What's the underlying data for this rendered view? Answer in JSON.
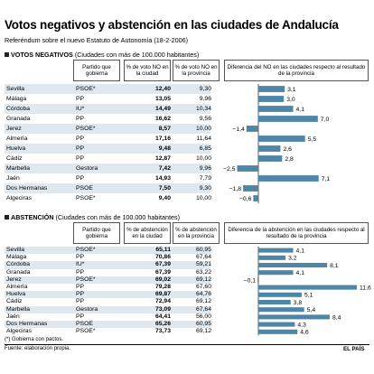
{
  "title": "Votos negativos y abstención en las ciudades de Andalucía",
  "subtitle": "Referéndum sobre el nuevo Estatuto de Autonomía (18-2-2006)",
  "sections": [
    {
      "label_bold": "VOTOS NEGATIVOS",
      "label_rest": " (Ciudades con más de 100.000 habitantes)",
      "headers": [
        "Partido que gobierna",
        "% de voto NO en la ciudad",
        "% de voto NO en la provincia",
        "Diferencia del NO en las ciudades respecto al resultado de la provincia"
      ]
    },
    {
      "label_bold": "ABSTENCIÓN",
      "label_rest": " (Ciudades con más de 100.000 habitantes)",
      "headers": [
        "Partido que gobierna",
        "% de abstención en la ciudad",
        "% de abstención en la provincia",
        "Diferencia de la abstención en las ciudades respecto al resultado de la provincia"
      ]
    }
  ],
  "chart_data": [
    {
      "type": "table",
      "title": "VOTOS NEGATIVOS",
      "columns": [
        "Ciudad",
        "Partido que gobierna",
        "% de voto NO en la ciudad",
        "% de voto NO en la provincia",
        "Diferencia"
      ],
      "rows": [
        {
          "city": "Sevilla",
          "party": "PSOE*",
          "city_pct": "12,40",
          "prov_pct": "9,30",
          "diff": 3.1,
          "diff_label": "3,1"
        },
        {
          "city": "Málaga",
          "party": "PP",
          "city_pct": "13,05",
          "prov_pct": "9,96",
          "diff": 3.0,
          "diff_label": "3,0"
        },
        {
          "city": "Córdoba",
          "party": "IU*",
          "city_pct": "14,49",
          "prov_pct": "10,34",
          "diff": 4.1,
          "diff_label": "4,1"
        },
        {
          "city": "Granada",
          "party": "PP",
          "city_pct": "16,62",
          "prov_pct": "9,56",
          "diff": 7.0,
          "diff_label": "7,0"
        },
        {
          "city": "Jerez",
          "party": "PSOE*",
          "city_pct": "8,57",
          "prov_pct": "10,00",
          "diff": -1.4,
          "diff_label": "−1,4"
        },
        {
          "city": "Almería",
          "party": "PP",
          "city_pct": "17,16",
          "prov_pct": "11,64",
          "diff": 5.5,
          "diff_label": "5,5"
        },
        {
          "city": "Huelva",
          "party": "PP",
          "city_pct": "9,48",
          "prov_pct": "6,85",
          "diff": 2.6,
          "diff_label": "2,6"
        },
        {
          "city": "Cádiz",
          "party": "PP",
          "city_pct": "12,87",
          "prov_pct": "10,00",
          "diff": 2.8,
          "diff_label": "2,8"
        },
        {
          "city": "Marbella",
          "party": "Gestora",
          "city_pct": "7,42",
          "prov_pct": "9,96",
          "diff": -2.5,
          "diff_label": "−2,5"
        },
        {
          "city": "Jaén",
          "party": "PP",
          "city_pct": "14,93",
          "prov_pct": "7,79",
          "diff": 7.1,
          "diff_label": "7,1"
        },
        {
          "city": "Dos Hermanas",
          "party": "PSOE",
          "city_pct": "7,50",
          "prov_pct": "9,30",
          "diff": -1.8,
          "diff_label": "−1,8"
        },
        {
          "city": "Algeciras",
          "party": "PSOE*",
          "city_pct": "9,40",
          "prov_pct": "10,00",
          "diff": -0.6,
          "diff_label": "−0,6"
        }
      ]
    },
    {
      "type": "table",
      "title": "ABSTENCIÓN",
      "columns": [
        "Ciudad",
        "Partido que gobierna",
        "% de abstención en la ciudad",
        "% de abstención en la provincia",
        "Diferencia"
      ],
      "rows": [
        {
          "city": "Sevilla",
          "party": "PSOE*",
          "city_pct": "65,11",
          "prov_pct": "60,95",
          "diff": 4.1,
          "diff_label": "4,1"
        },
        {
          "city": "Málaga",
          "party": "PP",
          "city_pct": "70,86",
          "prov_pct": "67,64",
          "diff": 3.2,
          "diff_label": "3,2"
        },
        {
          "city": "Córdoba",
          "party": "IU*",
          "city_pct": "67,39",
          "prov_pct": "59,21",
          "diff": 8.1,
          "diff_label": "8,1"
        },
        {
          "city": "Granada",
          "party": "PP",
          "city_pct": "67,39",
          "prov_pct": "63,22",
          "diff": 4.1,
          "diff_label": "4,1"
        },
        {
          "city": "Jerez",
          "party": "PSOE*",
          "city_pct": "69,02",
          "prov_pct": "69,12",
          "diff": -0.1,
          "diff_label": "−0,1"
        },
        {
          "city": "Almería",
          "party": "PP",
          "city_pct": "79,28",
          "prov_pct": "67,60",
          "diff": 11.6,
          "diff_label": "11,6"
        },
        {
          "city": "Huelva",
          "party": "PP",
          "city_pct": "69,87",
          "prov_pct": "64,76",
          "diff": 5.1,
          "diff_label": "5,1"
        },
        {
          "city": "Cádiz",
          "party": "PP",
          "city_pct": "72,94",
          "prov_pct": "69,12",
          "diff": 3.8,
          "diff_label": "3,8"
        },
        {
          "city": "Marbella",
          "party": "Gestora",
          "city_pct": "73,09",
          "prov_pct": "67,64",
          "diff": 5.4,
          "diff_label": "5,4"
        },
        {
          "city": "Jaén",
          "party": "PP",
          "city_pct": "64,41",
          "prov_pct": "56,00",
          "diff": 8.4,
          "diff_label": "8,4"
        },
        {
          "city": "Dos Hermanas",
          "party": "PSOE",
          "city_pct": "65,26",
          "prov_pct": "60,95",
          "diff": 4.3,
          "diff_label": "4,3"
        },
        {
          "city": "Algeciras",
          "party": "PSOE*",
          "city_pct": "73,73",
          "prov_pct": "69,12",
          "diff": 4.6,
          "diff_label": "4,6"
        }
      ]
    }
  ],
  "colors": {
    "bar": "#4f86a6",
    "shade": "#dfe8ee"
  },
  "footnote": "(*) Gobierna con pactos.",
  "source": "Fuente: elaboración propia.",
  "logo": "EL PAÍS"
}
